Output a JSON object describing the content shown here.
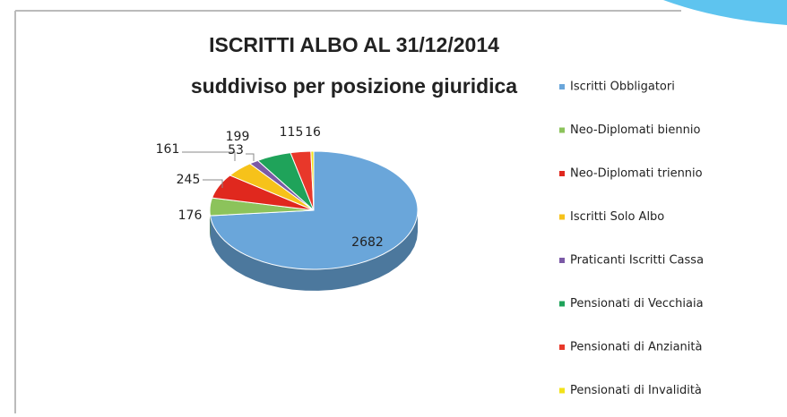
{
  "chart_data": {
    "type": "pie3d",
    "title": "ISCRITTI ALBO AL 31/12/2014",
    "subtitle": "suddiviso per posizione giuridica",
    "categories": [
      "Iscritti Obbligatori",
      "Neo-Diplomati biennio",
      "Neo-Diplomati triennio",
      "Iscritti Solo Albo",
      "Praticanti Iscritti Cassa",
      "Pensionati di Vecchiaia",
      "Pensionati di Anzianità",
      "Pensionati di Invalidità"
    ],
    "values": [
      2682,
      176,
      245,
      161,
      53,
      199,
      115,
      16
    ],
    "colors": [
      "#6aa6da",
      "#8cc35b",
      "#e0281e",
      "#f6c21a",
      "#7b5aa6",
      "#1fa35a",
      "#e8382a",
      "#f2e21a"
    ],
    "legend": "right"
  }
}
